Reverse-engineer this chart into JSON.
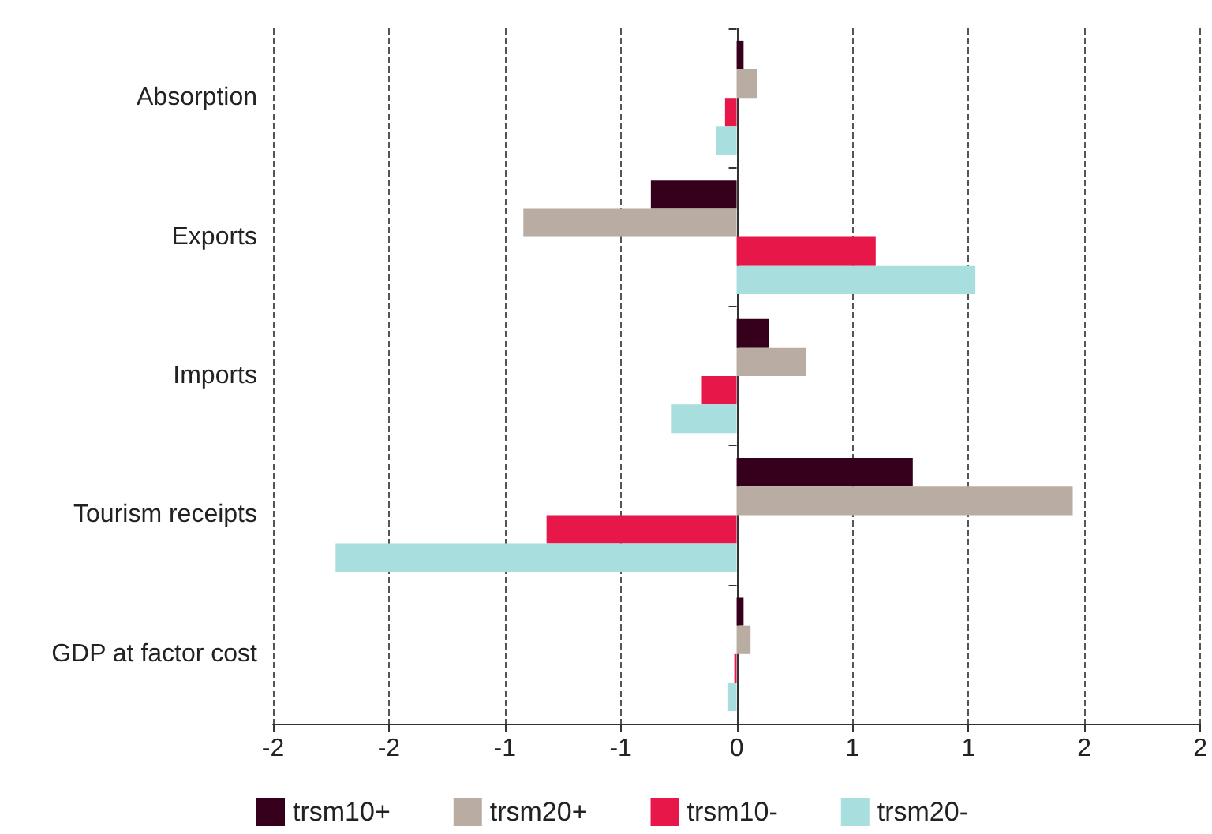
{
  "chart_data": {
    "type": "bar",
    "orientation": "horizontal",
    "categories": [
      "Absorption",
      "Exports",
      "Imports",
      "Tourism receipts",
      "GDP at factor cost"
    ],
    "series": [
      {
        "name": "trsm10+",
        "color": "#36001c",
        "values": [
          0.03,
          -0.37,
          0.14,
          0.76,
          0.03
        ]
      },
      {
        "name": "trsm20+",
        "color": "#b8aca3",
        "values": [
          0.09,
          -0.92,
          0.3,
          1.45,
          0.06
        ]
      },
      {
        "name": "trsm10-",
        "color": "#e8174a",
        "values": [
          -0.05,
          0.6,
          -0.15,
          -0.82,
          -0.01
        ]
      },
      {
        "name": "trsm20-",
        "color": "#a8dedd",
        "values": [
          -0.09,
          1.03,
          -0.28,
          -1.73,
          -0.04
        ]
      }
    ],
    "xlim": [
      -2,
      2
    ],
    "xticks": [
      -2,
      {
        "value": -1.5,
        "label": "-2"
      },
      -1,
      {
        "value": -0.5,
        "label": "-1"
      },
      0,
      {
        "value": 0.5,
        "label": "1"
      },
      1,
      {
        "value": 1.5,
        "label": "2"
      },
      2
    ],
    "grid": "x",
    "legend": "bottom"
  }
}
